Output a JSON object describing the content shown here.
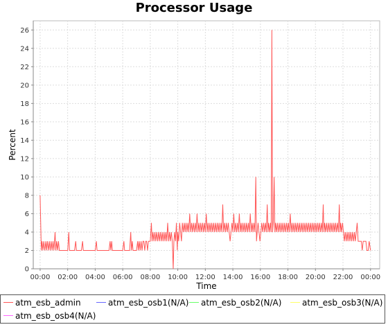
{
  "chart_data": {
    "type": "line",
    "title": "Processor Usage",
    "xlabel": "Time",
    "ylabel": "Percent",
    "xlim": [
      "23:30",
      "00:40"
    ],
    "ylim": [
      0,
      27
    ],
    "x_ticks": [
      "00:00",
      "02:00",
      "04:00",
      "06:00",
      "08:00",
      "10:00",
      "12:00",
      "14:00",
      "16:00",
      "18:00",
      "20:00",
      "22:00",
      "00:00"
    ],
    "y_ticks": [
      0,
      2,
      4,
      6,
      8,
      10,
      12,
      14,
      16,
      18,
      20,
      22,
      24,
      26
    ],
    "grid": true,
    "legend_position": "bottom",
    "series": [
      {
        "name": "atm_esb_admin",
        "color": "#ff5555",
        "points": [
          [
            "00:00",
            8
          ],
          [
            "00:05",
            2
          ],
          [
            "00:08",
            3
          ],
          [
            "00:12",
            2
          ],
          [
            "00:16",
            3
          ],
          [
            "00:20",
            2
          ],
          [
            "00:25",
            3
          ],
          [
            "00:28",
            2
          ],
          [
            "00:32",
            3
          ],
          [
            "00:36",
            2
          ],
          [
            "00:40",
            3
          ],
          [
            "00:44",
            2
          ],
          [
            "00:48",
            3
          ],
          [
            "00:52",
            2
          ],
          [
            "00:56",
            3
          ],
          [
            "01:00",
            2
          ],
          [
            "01:05",
            4
          ],
          [
            "01:08",
            2
          ],
          [
            "01:12",
            3
          ],
          [
            "01:16",
            2
          ],
          [
            "01:20",
            3
          ],
          [
            "01:24",
            2
          ],
          [
            "01:30",
            2
          ],
          [
            "02:00",
            2
          ],
          [
            "02:05",
            4
          ],
          [
            "02:08",
            2
          ],
          [
            "02:30",
            2
          ],
          [
            "02:35",
            3
          ],
          [
            "02:38",
            2
          ],
          [
            "03:00",
            2
          ],
          [
            "03:05",
            3
          ],
          [
            "03:08",
            2
          ],
          [
            "04:00",
            2
          ],
          [
            "04:05",
            3
          ],
          [
            "04:08",
            2
          ],
          [
            "05:00",
            2
          ],
          [
            "05:05",
            3
          ],
          [
            "05:08",
            2
          ],
          [
            "05:12",
            3
          ],
          [
            "05:15",
            2
          ],
          [
            "06:00",
            2
          ],
          [
            "06:05",
            3
          ],
          [
            "06:08",
            2
          ],
          [
            "06:30",
            2
          ],
          [
            "06:35",
            4
          ],
          [
            "06:38",
            2
          ],
          [
            "06:42",
            3
          ],
          [
            "06:45",
            2
          ],
          [
            "07:00",
            2
          ],
          [
            "07:05",
            3
          ],
          [
            "07:08",
            2
          ],
          [
            "07:12",
            3
          ],
          [
            "07:16",
            2
          ],
          [
            "07:20",
            3
          ],
          [
            "07:24",
            2
          ],
          [
            "07:28",
            3
          ],
          [
            "07:32",
            3
          ],
          [
            "07:36",
            2
          ],
          [
            "07:40",
            3
          ],
          [
            "07:44",
            3
          ],
          [
            "07:48",
            2
          ],
          [
            "07:52",
            3
          ],
          [
            "08:00",
            3
          ],
          [
            "08:05",
            5
          ],
          [
            "08:08",
            3
          ],
          [
            "08:12",
            4
          ],
          [
            "08:16",
            3
          ],
          [
            "08:20",
            4
          ],
          [
            "08:24",
            3
          ],
          [
            "08:28",
            4
          ],
          [
            "08:32",
            3
          ],
          [
            "08:36",
            4
          ],
          [
            "08:40",
            3
          ],
          [
            "08:44",
            4
          ],
          [
            "08:48",
            3
          ],
          [
            "08:52",
            4
          ],
          [
            "08:56",
            3
          ],
          [
            "09:00",
            4
          ],
          [
            "09:04",
            3
          ],
          [
            "09:08",
            4
          ],
          [
            "09:12",
            3
          ],
          [
            "09:16",
            5
          ],
          [
            "09:20",
            3
          ],
          [
            "09:24",
            4
          ],
          [
            "09:28",
            3
          ],
          [
            "09:32",
            4
          ],
          [
            "09:36",
            3
          ],
          [
            "09:40",
            0
          ],
          [
            "09:43",
            3
          ],
          [
            "09:46",
            4
          ],
          [
            "09:50",
            3
          ],
          [
            "09:54",
            5
          ],
          [
            "09:58",
            2
          ],
          [
            "10:00",
            4
          ],
          [
            "10:04",
            3
          ],
          [
            "10:08",
            5
          ],
          [
            "10:12",
            4
          ],
          [
            "10:16",
            3
          ],
          [
            "10:20",
            5
          ],
          [
            "10:24",
            4
          ],
          [
            "10:28",
            5
          ],
          [
            "10:32",
            4
          ],
          [
            "10:36",
            5
          ],
          [
            "10:40",
            4
          ],
          [
            "10:44",
            5
          ],
          [
            "10:48",
            4
          ],
          [
            "10:52",
            6
          ],
          [
            "10:56",
            4
          ],
          [
            "11:00",
            5
          ],
          [
            "11:04",
            4
          ],
          [
            "11:08",
            5
          ],
          [
            "11:12",
            4
          ],
          [
            "11:16",
            5
          ],
          [
            "11:20",
            4
          ],
          [
            "11:24",
            6
          ],
          [
            "11:28",
            4
          ],
          [
            "11:32",
            5
          ],
          [
            "11:36",
            4
          ],
          [
            "11:40",
            5
          ],
          [
            "11:44",
            4
          ],
          [
            "11:48",
            5
          ],
          [
            "11:52",
            4
          ],
          [
            "11:56",
            5
          ],
          [
            "12:00",
            4
          ],
          [
            "12:04",
            6
          ],
          [
            "12:08",
            4
          ],
          [
            "12:12",
            5
          ],
          [
            "12:16",
            4
          ],
          [
            "12:20",
            5
          ],
          [
            "12:24",
            4
          ],
          [
            "12:28",
            5
          ],
          [
            "12:32",
            4
          ],
          [
            "12:36",
            5
          ],
          [
            "12:40",
            4
          ],
          [
            "12:44",
            5
          ],
          [
            "12:48",
            4
          ],
          [
            "12:52",
            5
          ],
          [
            "12:56",
            4
          ],
          [
            "13:00",
            5
          ],
          [
            "13:04",
            4
          ],
          [
            "13:08",
            5
          ],
          [
            "13:12",
            4
          ],
          [
            "13:16",
            7
          ],
          [
            "13:20",
            4
          ],
          [
            "13:24",
            5
          ],
          [
            "13:28",
            4
          ],
          [
            "13:32",
            5
          ],
          [
            "13:36",
            4
          ],
          [
            "13:40",
            5
          ],
          [
            "13:44",
            4
          ],
          [
            "13:48",
            3
          ],
          [
            "13:52",
            4
          ],
          [
            "13:56",
            5
          ],
          [
            "14:00",
            4
          ],
          [
            "14:04",
            6
          ],
          [
            "14:08",
            4
          ],
          [
            "14:12",
            5
          ],
          [
            "14:16",
            4
          ],
          [
            "14:20",
            5
          ],
          [
            "14:24",
            4
          ],
          [
            "14:28",
            6
          ],
          [
            "14:32",
            4
          ],
          [
            "14:36",
            5
          ],
          [
            "14:40",
            4
          ],
          [
            "14:44",
            5
          ],
          [
            "14:48",
            4
          ],
          [
            "14:52",
            5
          ],
          [
            "14:56",
            4
          ],
          [
            "15:00",
            5
          ],
          [
            "15:04",
            4
          ],
          [
            "15:08",
            5
          ],
          [
            "15:12",
            4
          ],
          [
            "15:16",
            6
          ],
          [
            "15:20",
            4
          ],
          [
            "15:24",
            5
          ],
          [
            "15:28",
            4
          ],
          [
            "15:32",
            5
          ],
          [
            "15:36",
            4
          ],
          [
            "15:40",
            10
          ],
          [
            "15:43",
            3
          ],
          [
            "15:46",
            4
          ],
          [
            "15:50",
            5
          ],
          [
            "15:54",
            4
          ],
          [
            "15:58",
            3
          ],
          [
            "16:02",
            4
          ],
          [
            "16:06",
            5
          ],
          [
            "16:10",
            4
          ],
          [
            "16:14",
            5
          ],
          [
            "16:18",
            4
          ],
          [
            "16:22",
            5
          ],
          [
            "16:26",
            4
          ],
          [
            "16:30",
            7
          ],
          [
            "16:33",
            4
          ],
          [
            "16:36",
            5
          ],
          [
            "16:40",
            4
          ],
          [
            "16:44",
            5
          ],
          [
            "16:47",
            4
          ],
          [
            "16:50",
            26
          ],
          [
            "16:53",
            4
          ],
          [
            "16:56",
            5
          ],
          [
            "17:00",
            10
          ],
          [
            "17:03",
            4
          ],
          [
            "17:06",
            5
          ],
          [
            "17:10",
            4
          ],
          [
            "17:14",
            5
          ],
          [
            "17:18",
            4
          ],
          [
            "17:22",
            5
          ],
          [
            "17:26",
            4
          ],
          [
            "17:30",
            5
          ],
          [
            "17:34",
            4
          ],
          [
            "17:38",
            5
          ],
          [
            "17:42",
            4
          ],
          [
            "17:46",
            5
          ],
          [
            "17:50",
            4
          ],
          [
            "17:54",
            5
          ],
          [
            "17:58",
            4
          ],
          [
            "18:02",
            5
          ],
          [
            "18:06",
            4
          ],
          [
            "18:10",
            6
          ],
          [
            "18:14",
            4
          ],
          [
            "18:18",
            5
          ],
          [
            "18:22",
            4
          ],
          [
            "18:26",
            5
          ],
          [
            "18:30",
            4
          ],
          [
            "18:34",
            5
          ],
          [
            "18:38",
            4
          ],
          [
            "18:42",
            5
          ],
          [
            "18:46",
            4
          ],
          [
            "18:50",
            5
          ],
          [
            "18:54",
            4
          ],
          [
            "18:58",
            5
          ],
          [
            "19:02",
            4
          ],
          [
            "19:06",
            5
          ],
          [
            "19:10",
            4
          ],
          [
            "19:14",
            5
          ],
          [
            "19:18",
            4
          ],
          [
            "19:22",
            5
          ],
          [
            "19:26",
            4
          ],
          [
            "19:30",
            5
          ],
          [
            "19:34",
            4
          ],
          [
            "19:38",
            5
          ],
          [
            "19:42",
            4
          ],
          [
            "19:46",
            5
          ],
          [
            "19:50",
            4
          ],
          [
            "19:54",
            5
          ],
          [
            "19:58",
            4
          ],
          [
            "20:02",
            5
          ],
          [
            "20:06",
            4
          ],
          [
            "20:10",
            5
          ],
          [
            "20:14",
            4
          ],
          [
            "20:18",
            5
          ],
          [
            "20:22",
            4
          ],
          [
            "20:26",
            5
          ],
          [
            "20:30",
            4
          ],
          [
            "20:34",
            7
          ],
          [
            "20:37",
            4
          ],
          [
            "20:40",
            5
          ],
          [
            "20:44",
            4
          ],
          [
            "20:48",
            5
          ],
          [
            "20:52",
            4
          ],
          [
            "20:56",
            5
          ],
          [
            "21:00",
            4
          ],
          [
            "21:04",
            5
          ],
          [
            "21:08",
            4
          ],
          [
            "21:12",
            5
          ],
          [
            "21:16",
            4
          ],
          [
            "21:20",
            5
          ],
          [
            "21:24",
            4
          ],
          [
            "21:28",
            5
          ],
          [
            "21:32",
            4
          ],
          [
            "21:36",
            5
          ],
          [
            "21:40",
            4
          ],
          [
            "21:44",
            7
          ],
          [
            "21:47",
            4
          ],
          [
            "21:50",
            5
          ],
          [
            "21:54",
            4
          ],
          [
            "21:58",
            5
          ],
          [
            "22:02",
            4
          ],
          [
            "22:06",
            3
          ],
          [
            "22:10",
            4
          ],
          [
            "22:14",
            3
          ],
          [
            "22:18",
            4
          ],
          [
            "22:22",
            3
          ],
          [
            "22:26",
            4
          ],
          [
            "22:30",
            3
          ],
          [
            "22:34",
            4
          ],
          [
            "22:38",
            3
          ],
          [
            "22:42",
            4
          ],
          [
            "22:46",
            3
          ],
          [
            "22:50",
            4
          ],
          [
            "22:54",
            3
          ],
          [
            "22:58",
            4
          ],
          [
            "23:02",
            5
          ],
          [
            "23:06",
            3
          ],
          [
            "23:10",
            3
          ],
          [
            "23:20",
            3
          ],
          [
            "23:24",
            2
          ],
          [
            "23:28",
            3
          ],
          [
            "23:40",
            3
          ],
          [
            "23:44",
            2
          ],
          [
            "23:50",
            2
          ],
          [
            "23:54",
            3
          ],
          [
            "24:00",
            2
          ]
        ]
      },
      {
        "name": "atm_esb_osb1(N/A)",
        "color": "#6666ff",
        "points": []
      },
      {
        "name": "atm_esb_osb2(N/A)",
        "color": "#66ff66",
        "points": []
      },
      {
        "name": "atm_esb_osb3(N/A)",
        "color": "#ffff66",
        "points": []
      },
      {
        "name": "atm_esb_osb4(N/A)",
        "color": "#ff66ff",
        "points": []
      }
    ]
  }
}
